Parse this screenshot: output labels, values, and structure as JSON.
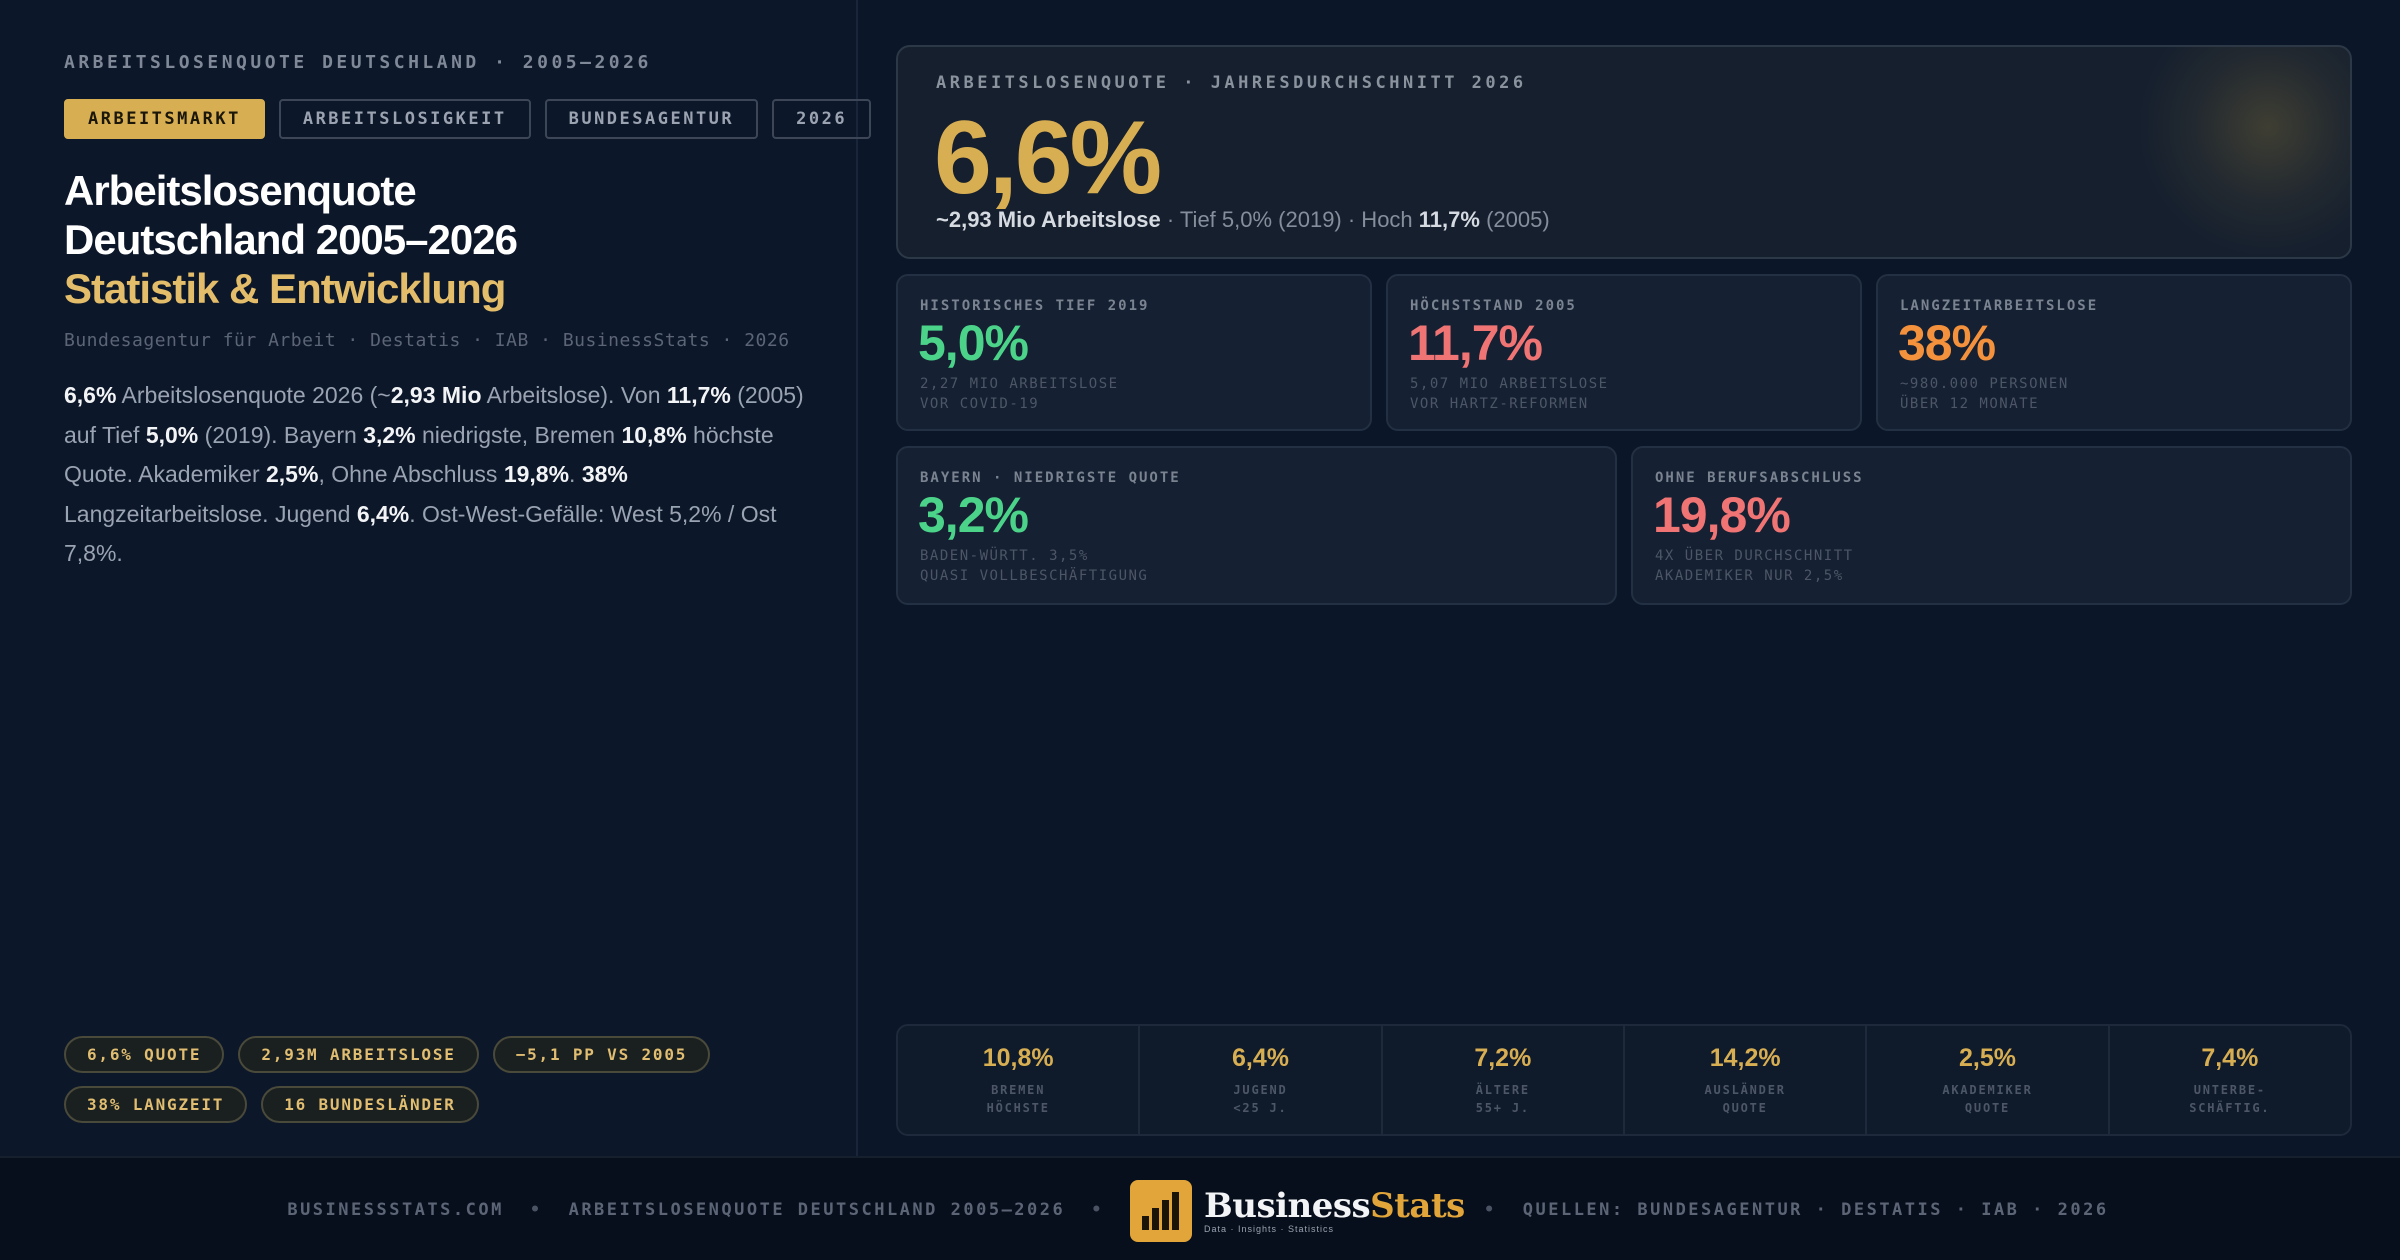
{
  "left": {
    "eyebrow": "ARBEITSLOSENQUOTE DEUTSCHLAND · 2005–2026",
    "tags": [
      "ARBEITSMARKT",
      "ARBEITSLOSIGKEIT",
      "BUNDESAGENTUR",
      "2026"
    ],
    "title_line1": "Arbeitslosenquote",
    "title_line2": "Deutschland 2005–2026",
    "title_accent": "Statistik & Entwicklung",
    "sources": "Bundesagentur für Arbeit · Destatis · IAB · BusinessStats · 2026",
    "intro": [
      {
        "b": "6,6%"
      },
      {
        "t": " Arbeitslosenquote 2026 (~"
      },
      {
        "b": "2,93 Mio"
      },
      {
        "t": " Arbeitslose). Von "
      },
      {
        "b": "11,7%"
      },
      {
        "t": " (2005) auf Tief "
      },
      {
        "b": "5,0%"
      },
      {
        "t": " (2019). Bayern "
      },
      {
        "b": "3,2%"
      },
      {
        "t": " niedrigste, Bremen "
      },
      {
        "b": "10,8%"
      },
      {
        "t": " höchste Quote. Akademiker "
      },
      {
        "b": "2,5%"
      },
      {
        "t": ", Ohne Abschluss "
      },
      {
        "b": "19,8%"
      },
      {
        "t": ". "
      },
      {
        "b": "38%"
      },
      {
        "t": " Langzeitarbeitslose. Jugend "
      },
      {
        "b": "6,4%"
      },
      {
        "t": ". Ost-West-Gefälle: West 5,2% / Ost 7,8%."
      }
    ],
    "pills": [
      "6,6% QUOTE",
      "2,93M ARBEITSLOSE",
      "−5,1 PP VS 2005",
      "38% LANGZEIT",
      "16 BUNDESLÄNDER"
    ]
  },
  "hero": {
    "label": "ARBEITSLOSENQUOTE · JAHRESDURCHSCHNITT 2026",
    "value": "6,6%",
    "sub_bold1": "~2,93 Mio Arbeitslose",
    "sub_text1": " · Tief 5,0% (2019) · Hoch ",
    "sub_bold2": "11,7%",
    "sub_text2": " (2005)"
  },
  "cards": [
    {
      "label": "HISTORISCHES TIEF 2019",
      "value": "5,0%",
      "note1": "2,27 MIO ARBEITSLOSE",
      "note2": "VOR COVID-19"
    },
    {
      "label": "HÖCHSTSTAND 2005",
      "value": "11,7%",
      "note1": "5,07 MIO ARBEITSLOSE",
      "note2": "VOR HARTZ-REFORMEN"
    },
    {
      "label": "LANGZEITARBEITSLOSE",
      "value": "38%",
      "note1": "~980.000 PERSONEN",
      "note2": "ÜBER 12 MONATE"
    },
    {
      "label": "BAYERN · NIEDRIGSTE QUOTE",
      "value": "3,2%",
      "note1": "BADEN-WÜRTT. 3,5%",
      "note2": "QUASI VOLLBESCHÄFTIGUNG"
    },
    {
      "label": "OHNE BERUFSABSCHLUSS",
      "value": "19,8%",
      "note1": "4X ÜBER DURCHSCHNITT",
      "note2": "AKADEMIKER NUR 2,5%"
    }
  ],
  "colors": {
    "green": "#4cd38a",
    "red": "#f07474",
    "orange": "#f4913c",
    "gold": "#d8ae52"
  },
  "stats": [
    {
      "value": "10,8%",
      "l1": "BREMEN",
      "l2": "HÖCHSTE"
    },
    {
      "value": "6,4%",
      "l1": "JUGEND",
      "l2": "<25 J."
    },
    {
      "value": "7,2%",
      "l1": "ÄLTERE",
      "l2": "55+ J."
    },
    {
      "value": "14,2%",
      "l1": "AUSLÄNDER",
      "l2": "QUOTE"
    },
    {
      "value": "2,5%",
      "l1": "AKADEMIKER",
      "l2": "QUOTE"
    },
    {
      "value": "7,4%",
      "l1": "UNTERBE-",
      "l2": "SCHÄFTIG."
    }
  ],
  "footer": {
    "site": "BUSINESSSTATS.COM",
    "page": "ARBEITSLOSENQUOTE DEUTSCHLAND 2005–2026",
    "sep": "•",
    "logo_word_a": "Business",
    "logo_word_b": "Stats",
    "logo_tagline": "Data · Insights · Statistics",
    "sources": "QUELLEN: BUNDESAGENTUR · DESTATIS · IAB · 2026"
  }
}
